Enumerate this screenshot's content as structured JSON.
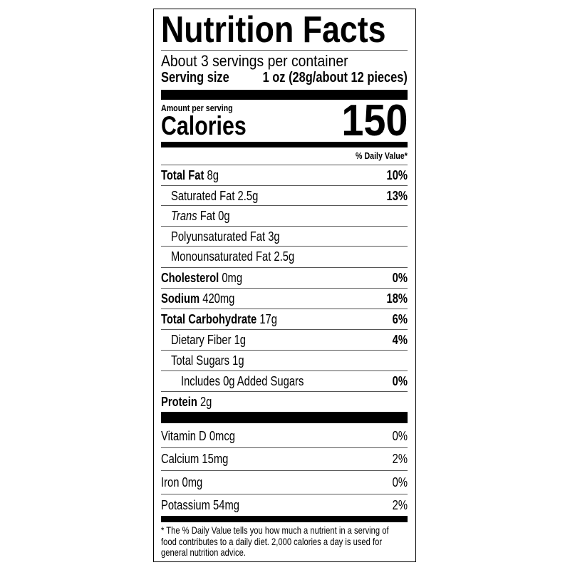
{
  "title": "Nutrition Facts",
  "servings_per_container": "About 3 servings per container",
  "serving_size_label": "Serving size",
  "serving_size_value": "1 oz (28g/about 12 pieces)",
  "amount_per_serving": "Amount per serving",
  "calories_label": "Calories",
  "calories_value": "150",
  "daily_value_header": "% Daily Value*",
  "nutrients": [
    {
      "name": "Total Fat",
      "amount": "8g",
      "dv": "10%"
    },
    {
      "name": "Saturated Fat",
      "amount": "2.5g",
      "dv": "13%"
    },
    {
      "name": "Trans",
      "amount": "Fat 0g",
      "dv": ""
    },
    {
      "name": "Polyunsaturated Fat",
      "amount": "3g",
      "dv": ""
    },
    {
      "name": "Monounsaturated Fat",
      "amount": "2.5g",
      "dv": ""
    },
    {
      "name": "Cholesterol",
      "amount": "0mg",
      "dv": "0%"
    },
    {
      "name": "Sodium",
      "amount": "420mg",
      "dv": "18%"
    },
    {
      "name": "Total Carbohydrate",
      "amount": "17g",
      "dv": "6%"
    },
    {
      "name": "Dietary Fiber",
      "amount": "1g",
      "dv": "4%"
    },
    {
      "name": "Total Sugars",
      "amount": "1g",
      "dv": ""
    },
    {
      "name": "Includes 0g Added Sugars",
      "amount": "",
      "dv": "0%"
    },
    {
      "name": "Protein",
      "amount": "2g",
      "dv": ""
    }
  ],
  "vitamins": [
    {
      "name": "Vitamin D",
      "amount": "0mcg",
      "dv": "0%"
    },
    {
      "name": "Calcium",
      "amount": "15mg",
      "dv": "2%"
    },
    {
      "name": "Iron",
      "amount": "0mg",
      "dv": "0%"
    },
    {
      "name": "Potassium",
      "amount": "54mg",
      "dv": "2%"
    }
  ],
  "footnote_lines": [
    "* The % Daily Value tells you how much a nutrient in a serving of",
    "food contributes to a daily diet. 2,000 calories a day is used for",
    "general nutrition advice."
  ]
}
